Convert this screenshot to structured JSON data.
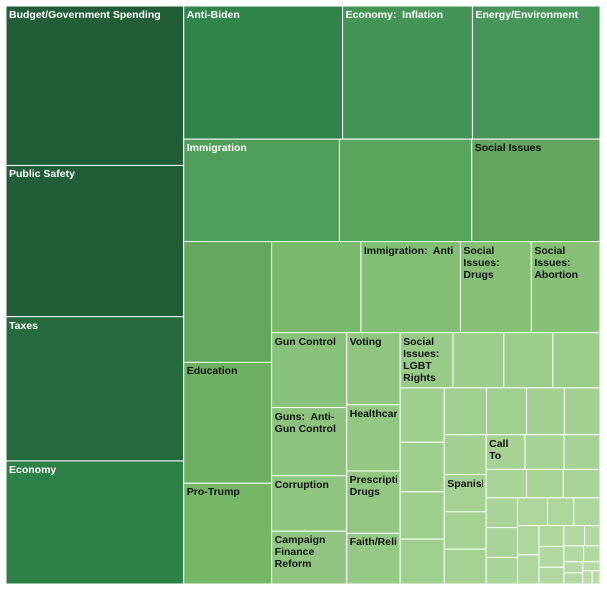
{
  "chart_data": {
    "type": "treemap",
    "title": "",
    "cells": [
      {
        "label": "Budget/Government Spending",
        "value": 27.2,
        "color": "#215e37",
        "text_color": "#ffffff"
      },
      {
        "label": "Public Safety",
        "value": 25.8,
        "color": "#215e37",
        "text_color": "#ffffff"
      },
      {
        "label": "Taxes",
        "value": 24.6,
        "color": "#256b3d",
        "text_color": "#ffffff"
      },
      {
        "label": "Economy",
        "value": 21.0,
        "color": "#2d8046",
        "text_color": "#ffffff"
      },
      {
        "label": "Anti-Biden",
        "value": 20.3,
        "color": "#2f844a",
        "text_color": "#ffffff"
      },
      {
        "label": "Economy:  Inflation",
        "value": 16.6,
        "color": "#449455",
        "text_color": "#ffffff"
      },
      {
        "label": "Energy/Environment",
        "value": 16.3,
        "color": "#46965a",
        "text_color": "#ffffff"
      },
      {
        "label": "Immigration",
        "value": 15.3,
        "color": "#4f9e59",
        "text_color": "#ffffff"
      },
      {
        "label": "",
        "value": 13.0,
        "color": "#5aa55c",
        "text_color": "#ffffff"
      },
      {
        "label": "Social Issues",
        "value": 12.6,
        "color": "#63a55f",
        "text_color": "#111111"
      },
      {
        "label": "",
        "value": 10.2,
        "color": "#64a860",
        "text_color": "#111111"
      },
      {
        "label": "Education",
        "value": 10.2,
        "color": "#6db062",
        "text_color": "#111111"
      },
      {
        "label": "Pro-Trump",
        "value": 8.5,
        "color": "#76b767",
        "text_color": "#111111"
      },
      {
        "label": "",
        "value": 7.8,
        "color": "#79b96b",
        "text_color": "#111111"
      },
      {
        "label": "Immigration:  Anti",
        "value": 8.7,
        "color": "#82be73",
        "text_color": "#111111"
      },
      {
        "label": "Social Issues: Drugs",
        "value": 6.2,
        "color": "#86c177",
        "text_color": "#111111"
      },
      {
        "label": "Social Issues: Abortion",
        "value": 6.0,
        "color": "#86c177",
        "text_color": "#111111"
      },
      {
        "label": "Gun Control",
        "value": 5.4,
        "color": "#89c27a",
        "text_color": "#111111"
      },
      {
        "label": "Guns:  Anti-Gun Control",
        "value": 4.9,
        "color": "#8cc47d",
        "text_color": "#111111"
      },
      {
        "label": "Corruption",
        "value": 4.0,
        "color": "#8fc680",
        "text_color": "#111111"
      },
      {
        "label": "Campaign Finance Reform",
        "value": 3.8,
        "color": "#90c681",
        "text_color": "#111111"
      },
      {
        "label": "Voting",
        "value": 3.7,
        "color": "#90c681",
        "text_color": "#111111"
      },
      {
        "label": "Healthcare",
        "value": 3.4,
        "color": "#93c883",
        "text_color": "#111111"
      },
      {
        "label": "Prescription Drugs",
        "value": 3.2,
        "color": "#93c883",
        "text_color": "#111111"
      },
      {
        "label": "Faith/Religion",
        "value": 2.6,
        "color": "#95c985",
        "text_color": "#111111"
      },
      {
        "label": "Social Issues: LGBT Rights",
        "value": 2.8,
        "color": "#98cb88",
        "text_color": "#111111"
      },
      {
        "label": "",
        "value": 2.7,
        "color": "#9bcd8b",
        "text_color": "#111111"
      },
      {
        "label": "",
        "value": 2.6,
        "color": "#9bcd8b",
        "text_color": "#111111"
      },
      {
        "label": "",
        "value": 2.5,
        "color": "#9bcd8b",
        "text_color": "#111111"
      },
      {
        "label": "",
        "value": 2.3,
        "color": "#9ecf8d",
        "text_color": "#111111"
      },
      {
        "label": "",
        "value": 2.1,
        "color": "#9ecf8d",
        "text_color": "#111111"
      },
      {
        "label": "",
        "value": 2.0,
        "color": "#9ecf8d",
        "text_color": "#111111"
      },
      {
        "label": "",
        "value": 1.9,
        "color": "#a0d08f",
        "text_color": "#111111"
      },
      {
        "label": "",
        "value": 1.9,
        "color": "#a0d08f",
        "text_color": "#111111"
      },
      {
        "label": "",
        "value": 1.8,
        "color": "#a0d08f",
        "text_color": "#111111"
      },
      {
        "label": "",
        "value": 1.7,
        "color": "#a2d191",
        "text_color": "#111111"
      },
      {
        "label": "",
        "value": 1.6,
        "color": "#a2d191",
        "text_color": "#111111"
      },
      {
        "label": "",
        "value": 1.6,
        "color": "#a2d191",
        "text_color": "#111111"
      },
      {
        "label": "Spanish",
        "value": 1.5,
        "color": "#a4d293",
        "text_color": "#111111"
      },
      {
        "label": "",
        "value": 1.5,
        "color": "#a4d293",
        "text_color": "#111111"
      },
      {
        "label": "",
        "value": 1.4,
        "color": "#a4d293",
        "text_color": "#111111"
      },
      {
        "label": "Call To",
        "value": 1.3,
        "color": "#a6d395",
        "text_color": "#111111"
      },
      {
        "label": "",
        "value": 1.3,
        "color": "#a6d395",
        "text_color": "#111111"
      },
      {
        "label": "",
        "value": 1.2,
        "color": "#a6d395",
        "text_color": "#111111"
      },
      {
        "label": "",
        "value": 1.1,
        "color": "#a8d497",
        "text_color": "#111111"
      },
      {
        "label": "",
        "value": 1.0,
        "color": "#a8d497",
        "text_color": "#111111"
      },
      {
        "label": "",
        "value": 1.0,
        "color": "#a8d497",
        "text_color": "#111111"
      },
      {
        "label": "",
        "value": 0.9,
        "color": "#aad599",
        "text_color": "#111111"
      },
      {
        "label": "",
        "value": 0.9,
        "color": "#aad599",
        "text_color": "#111111"
      },
      {
        "label": "",
        "value": 0.8,
        "color": "#aad599",
        "text_color": "#111111"
      },
      {
        "label": "",
        "value": 0.8,
        "color": "#acd69b",
        "text_color": "#111111"
      },
      {
        "label": "",
        "value": 0.7,
        "color": "#acd69b",
        "text_color": "#111111"
      },
      {
        "label": "",
        "value": 0.7,
        "color": "#acd69b",
        "text_color": "#111111"
      },
      {
        "label": "",
        "value": 0.6,
        "color": "#aed79d",
        "text_color": "#111111"
      },
      {
        "label": "",
        "value": 0.6,
        "color": "#aed79d",
        "text_color": "#111111"
      },
      {
        "label": "",
        "value": 0.5,
        "color": "#aed79d",
        "text_color": "#111111"
      },
      {
        "label": "",
        "value": 0.5,
        "color": "#b0d89f",
        "text_color": "#111111"
      },
      {
        "label": "",
        "value": 0.4,
        "color": "#b0d89f",
        "text_color": "#111111"
      },
      {
        "label": "",
        "value": 0.4,
        "color": "#b0d89f",
        "text_color": "#111111"
      },
      {
        "label": "",
        "value": 0.3,
        "color": "#b2d9a1",
        "text_color": "#111111"
      },
      {
        "label": "",
        "value": 0.3,
        "color": "#b2d9a1",
        "text_color": "#111111"
      },
      {
        "label": "",
        "value": 0.25,
        "color": "#b2d9a1",
        "text_color": "#111111"
      },
      {
        "label": "",
        "value": 0.2,
        "color": "#b4daa3",
        "text_color": "#111111"
      },
      {
        "label": "",
        "value": 0.2,
        "color": "#b4daa3",
        "text_color": "#111111"
      },
      {
        "label": "",
        "value": 0.15,
        "color": "#b4daa3",
        "text_color": "#111111"
      },
      {
        "label": "",
        "value": 0.12,
        "color": "#b6dba5",
        "text_color": "#111111"
      },
      {
        "label": "",
        "value": 0.1,
        "color": "#b6dba5",
        "text_color": "#111111"
      }
    ]
  }
}
